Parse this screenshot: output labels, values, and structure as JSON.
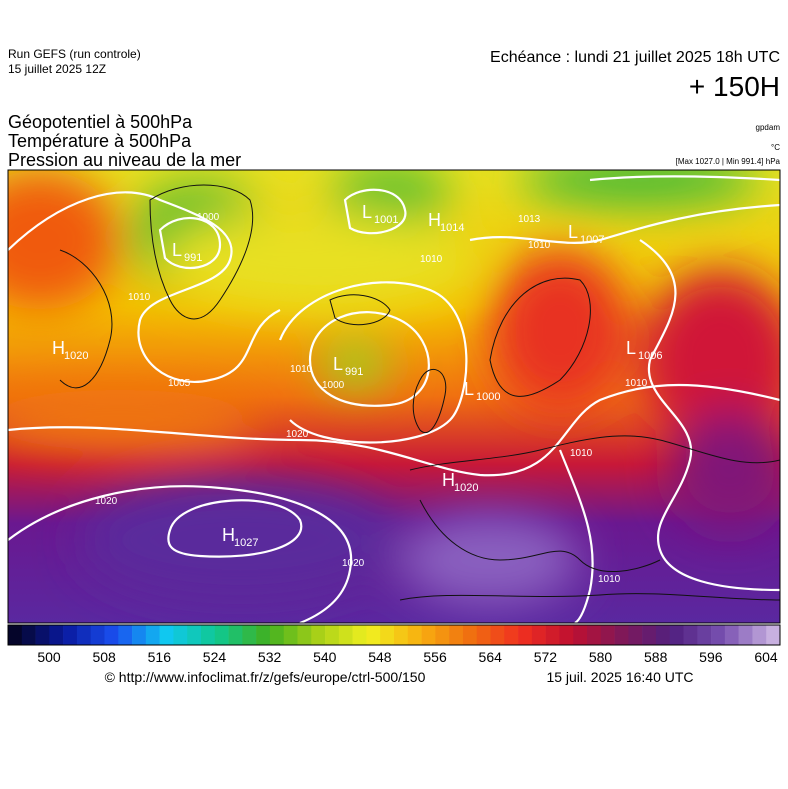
{
  "header": {
    "run": "Run GEFS (run controle)",
    "run_date": "15 juillet 2025 12Z",
    "echeance": "Echéance : lundi 21 juillet 2025 18h UTC",
    "lead": "+ 150H",
    "fields": [
      "Géopotentiel à 500hPa",
      "Température à 500hPa",
      "Pression au niveau de la mer"
    ],
    "units": [
      "gpdam",
      "°C",
      "[Max 1027.0 | Min 991.4] hPa"
    ]
  },
  "map": {
    "systems": [
      {
        "letter": "L",
        "value": "1001"
      },
      {
        "letter": "H",
        "value": "1014"
      },
      {
        "letter": "L",
        "value": "1007"
      },
      {
        "letter": "L",
        "value": "991"
      },
      {
        "letter": "L",
        "value": "1006"
      },
      {
        "letter": "H",
        "value": "1020"
      },
      {
        "letter": "L",
        "value": "991"
      },
      {
        "letter": "L",
        "value": "1000"
      },
      {
        "letter": "H",
        "value": "1020"
      },
      {
        "letter": "H",
        "value": "1027"
      }
    ],
    "isobar_labels": [
      "1000",
      "1013",
      "1010",
      "1010",
      "1010",
      "1005",
      "1010",
      "1000",
      "1020",
      "1010",
      "1020",
      "1020",
      "1010",
      "1010"
    ]
  },
  "colorbar": {
    "ticks": [
      500,
      508,
      516,
      524,
      532,
      540,
      548,
      556,
      564,
      572,
      580,
      588,
      596,
      604
    ]
  },
  "footer": {
    "url": "© http://www.infoclimat.fr/z/gefs/europe/ctrl-500/150",
    "timestamp": "15 juil. 2025 16:40 UTC"
  }
}
